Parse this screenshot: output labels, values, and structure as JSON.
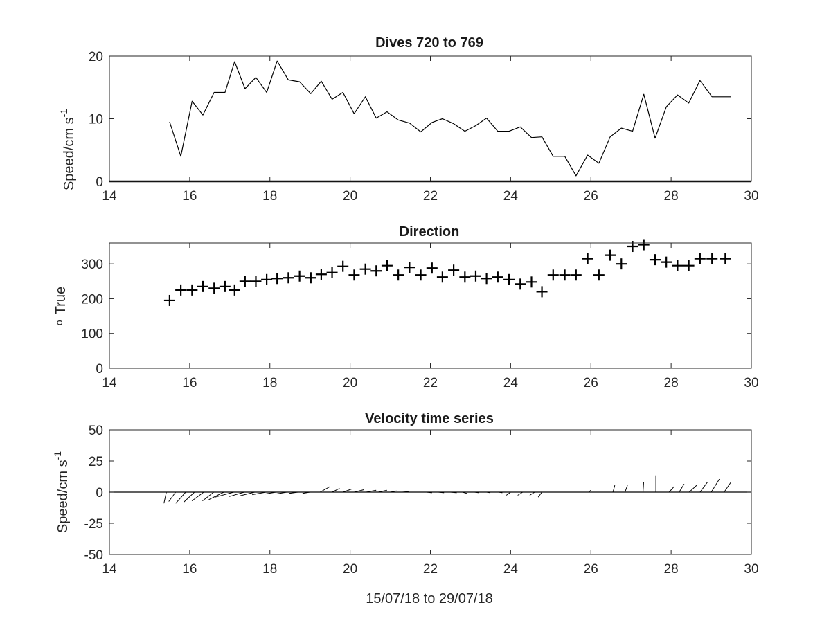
{
  "chart_data": [
    {
      "type": "line",
      "title": "Dives 720 to 769",
      "xlabel": "",
      "ylabel": "Speed/cm s",
      "ylabel_superscript": "-1",
      "xlim": [
        14,
        30
      ],
      "ylim": [
        0,
        20
      ],
      "xticks": [
        14,
        16,
        18,
        20,
        22,
        24,
        26,
        28,
        30
      ],
      "yticks": [
        0,
        10,
        20
      ],
      "zero_line": true,
      "series": [
        {
          "x": [
            15.5,
            15.78,
            16.06,
            16.33,
            16.61,
            16.88,
            17.12,
            17.38,
            17.65,
            17.92,
            18.18,
            18.46,
            18.74,
            19.02,
            19.28,
            19.55,
            19.82,
            20.1,
            20.38,
            20.65,
            20.92,
            21.2,
            21.48,
            21.76,
            22.04,
            22.3,
            22.58,
            22.86,
            23.13,
            23.4,
            23.68,
            23.96,
            24.24,
            24.52,
            24.78,
            25.06,
            25.35,
            25.63,
            25.92,
            26.2,
            26.48,
            26.76,
            27.04,
            27.32,
            27.6,
            27.88,
            28.16,
            28.44,
            28.72,
            29.02,
            29.5
          ],
          "values": [
            9.5,
            4.0,
            12.8,
            10.6,
            14.2,
            14.2,
            19.1,
            14.8,
            16.6,
            14.2,
            19.2,
            16.2,
            15.9,
            14.0,
            16.0,
            13.1,
            14.2,
            10.8,
            13.5,
            10.1,
            11.1,
            9.8,
            9.3,
            7.9,
            9.4,
            10.0,
            9.2,
            8.0,
            8.9,
            10.1,
            8.0,
            8.0,
            8.7,
            7.0,
            7.1,
            4.0,
            4.0,
            0.9,
            4.2,
            2.9,
            7.1,
            8.5,
            8.0,
            13.9,
            6.9,
            11.9,
            13.8,
            12.5,
            16.1,
            13.5,
            13.5
          ]
        }
      ]
    },
    {
      "type": "scatter",
      "title": "Direction",
      "xlabel": "",
      "ylabel": "True",
      "ylabel_prefix": "o",
      "xlim": [
        14,
        30
      ],
      "ylim": [
        0,
        360
      ],
      "xticks": [
        14,
        16,
        18,
        20,
        22,
        24,
        26,
        28,
        30
      ],
      "yticks": [
        0,
        100,
        200,
        300
      ],
      "marker": "+",
      "series": [
        {
          "x": [
            15.5,
            15.78,
            16.06,
            16.33,
            16.61,
            16.88,
            17.12,
            17.38,
            17.65,
            17.92,
            18.18,
            18.46,
            18.74,
            19.02,
            19.28,
            19.55,
            19.82,
            20.1,
            20.38,
            20.65,
            20.92,
            21.2,
            21.48,
            21.76,
            22.04,
            22.3,
            22.58,
            22.86,
            23.13,
            23.4,
            23.68,
            23.96,
            24.24,
            24.52,
            24.78,
            25.06,
            25.35,
            25.63,
            25.92,
            26.2,
            26.48,
            26.76,
            27.04,
            27.32,
            27.6,
            27.88,
            28.16,
            28.44,
            28.72,
            29.02,
            29.35
          ],
          "values": [
            195,
            225,
            225,
            235,
            230,
            235,
            225,
            250,
            250,
            255,
            258,
            260,
            265,
            260,
            270,
            275,
            293,
            268,
            285,
            280,
            295,
            268,
            290,
            268,
            288,
            262,
            282,
            262,
            265,
            258,
            262,
            255,
            242,
            248,
            220,
            268,
            268,
            268,
            315,
            268,
            325,
            300,
            350,
            355,
            312,
            305,
            295,
            295,
            315,
            315,
            315
          ]
        }
      ]
    },
    {
      "type": "line",
      "title": "Velocity time series",
      "xlabel": "15/07/18 to 29/07/18",
      "ylabel": "Speed/cm s",
      "ylabel_superscript": "-1",
      "xlim": [
        14,
        30
      ],
      "ylim": [
        -50,
        50
      ],
      "xticks": [
        14,
        16,
        18,
        20,
        22,
        24,
        26,
        28,
        30
      ],
      "yticks": [
        -50,
        -25,
        0,
        25,
        50
      ],
      "style": "stick vectors from the zero line",
      "series": [
        {
          "x": [
            15.42,
            15.65,
            15.9,
            16.12,
            16.35,
            16.6,
            16.85,
            17.1,
            17.36,
            17.62,
            17.9,
            18.15,
            18.42,
            18.7,
            19.0,
            19.25,
            19.55,
            19.82,
            20.1,
            20.4,
            20.7,
            21.0,
            21.3,
            21.6,
            21.9,
            22.2,
            22.5,
            22.8,
            23.1,
            23.4,
            23.7,
            24.0,
            24.3,
            24.6,
            24.78,
            25.95,
            26.55,
            26.85,
            27.3,
            27.62,
            27.95,
            28.2,
            28.45,
            28.72,
            29.0,
            29.32
          ],
          "u": [
            -2.0,
            -5.5,
            -8.0,
            -8.5,
            -9.5,
            -9.0,
            -12.0,
            -15.0,
            -12.0,
            -12.0,
            -11.0,
            -9.0,
            -9.0,
            -7.0,
            -6.0,
            8.0,
            6.0,
            7.0,
            8.0,
            8.0,
            7.0,
            5.0,
            5.0,
            6.0,
            4.5,
            4.5,
            5.0,
            3.5,
            3.5,
            3.0,
            3.0,
            -3.5,
            -4.0,
            -4.0,
            -3.0,
            1.5,
            1.5,
            2.0,
            0.5,
            0.0,
            4.0,
            4.0,
            6.0,
            6.0,
            6.5,
            5.5
          ],
          "v": [
            -9.0,
            -7.5,
            -9.0,
            -8.0,
            -7.0,
            -7.0,
            -6.0,
            -4.0,
            -3.5,
            -3.0,
            -2.0,
            -1.5,
            -1.5,
            -1.0,
            -1.0,
            4.5,
            3.0,
            2.5,
            2.0,
            1.5,
            1.5,
            1.0,
            0.5,
            0.0,
            -0.5,
            -0.5,
            -0.5,
            -1.0,
            -0.5,
            -0.5,
            -0.5,
            -2.5,
            -2.5,
            -2.5,
            -4.0,
            1.5,
            5.5,
            5.5,
            8.0,
            13.5,
            4.5,
            6.5,
            5.5,
            8.0,
            10.5,
            8.0
          ]
        }
      ]
    }
  ]
}
